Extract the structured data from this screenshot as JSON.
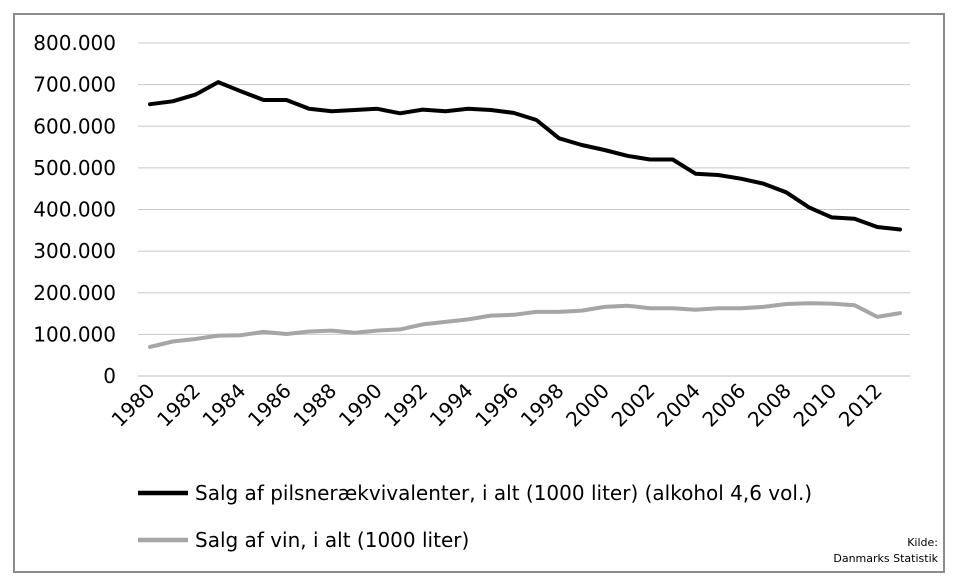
{
  "chart_data": {
    "type": "line",
    "x": [
      1980,
      1981,
      1982,
      1983,
      1984,
      1985,
      1986,
      1987,
      1988,
      1989,
      1990,
      1991,
      1992,
      1993,
      1994,
      1995,
      1996,
      1997,
      1998,
      1999,
      2000,
      2001,
      2002,
      2003,
      2004,
      2005,
      2006,
      2007,
      2008,
      2009,
      2010,
      2011,
      2012,
      2013
    ],
    "x_tick_labels": [
      "1980",
      "1982",
      "1984",
      "1986",
      "1988",
      "1990",
      "1992",
      "1994",
      "1996",
      "1998",
      "2000",
      "2002",
      "2004",
      "2006",
      "2008",
      "2010",
      "2012"
    ],
    "y_tick_labels": [
      "0",
      "100.000",
      "200.000",
      "300.000",
      "400.000",
      "500.000",
      "600.000",
      "700.000",
      "800.000"
    ],
    "ylim": [
      0,
      800000
    ],
    "grid": true,
    "legend_position": "bottom",
    "series": [
      {
        "name": "Salg af pilsnerækvivalenter, i alt (1000 liter) (alkohol 4,6 vol.)",
        "color": "#000000",
        "values": [
          653000,
          660000,
          676000,
          706000,
          684000,
          663000,
          663000,
          642000,
          636000,
          639000,
          642000,
          631000,
          640000,
          636000,
          642000,
          639000,
          632000,
          615000,
          571000,
          555000,
          543000,
          529000,
          520000,
          520000,
          486000,
          483000,
          474000,
          462000,
          441000,
          405000,
          381000,
          378000,
          358000,
          352000
        ]
      },
      {
        "name": "Salg af vin, i alt (1000 liter)",
        "color": "#a6a6a6",
        "values": [
          70000,
          83000,
          89000,
          97000,
          98000,
          106000,
          101000,
          107000,
          109000,
          104000,
          109000,
          112000,
          124000,
          130000,
          136000,
          145000,
          147000,
          154000,
          154000,
          157000,
          166000,
          169000,
          163000,
          163000,
          159000,
          163000,
          163000,
          166000,
          173000,
          175000,
          174000,
          170000,
          142000,
          151000
        ]
      }
    ],
    "source_label": "Kilde:",
    "source_text": "Danmarks Statistik"
  }
}
